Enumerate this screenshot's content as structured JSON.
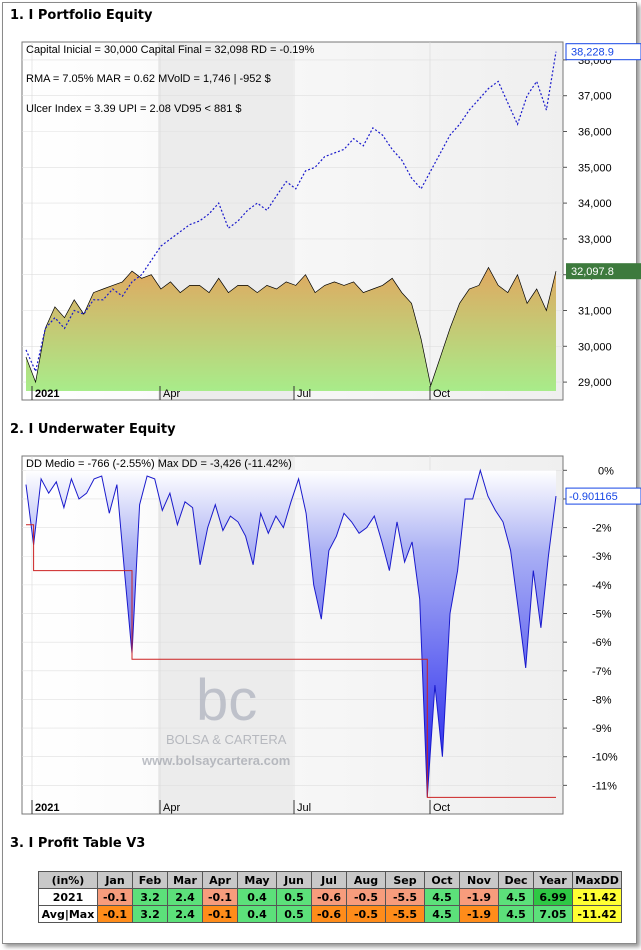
{
  "sections": {
    "equity_title": "1. I Portfolio Equity",
    "underwater_title": "2. I Underwater Equity",
    "table_title": "3. I Profit Table V3"
  },
  "equity_stats": {
    "line1": "Capital Inicial = 30,000  Capital Final = 32,098   RD = -0.19%",
    "line2": "RMA = 7.05%   MAR = 0.62   MVolD = 1,746 | -952 $",
    "line3": "Ulcer Index = 3.39   UPI = 2.08   VD95 < 881 $"
  },
  "underwater_stats": {
    "line1": "DD Medio = -766 (-2.55%)      Max DD = -3,426 (-11.42%)"
  },
  "watermark": {
    "logo": "bc",
    "name": "BOLSA & CARTERA",
    "url": "www.bolsaycartera.com"
  },
  "colors": {
    "equity_line": "#1a1acc",
    "benchmark_fill_top": "#e0a860",
    "benchmark_fill_bottom": "#a8ec8a",
    "underwater_line": "#1a1acc",
    "maxdd_line": "#cc2222",
    "shade": "#ececec",
    "label_blue": "#1646e6",
    "label_green": "#3d7a3d",
    "cell_red": "#f79c7c",
    "cell_orange": "#ff8c1a",
    "cell_green": "#5ce07a",
    "cell_yellow": "#ffff33",
    "cell_darkgreen": "#2ec844"
  },
  "chart_data": [
    {
      "type": "line",
      "name": "portfolio-equity",
      "x_ticks": [
        "2021",
        "Apr",
        "Jul",
        "Oct"
      ],
      "y_ticks": [
        "29,000",
        "30,000",
        "31,000",
        "32,000",
        "33,000",
        "34,000",
        "35,000",
        "36,000",
        "37,000",
        "38,000"
      ],
      "ylim": [
        28500,
        38500
      ],
      "last_value_labels": [
        "38,228.9",
        "32,097.8"
      ],
      "series": [
        {
          "values": [
            29900,
            29300,
            30500,
            30800,
            30500,
            31000,
            30900,
            31300,
            31300,
            31600,
            31400,
            31800,
            32000,
            32400,
            32800,
            33000,
            33200,
            33400,
            33500,
            33700,
            34000,
            33300,
            33500,
            33800,
            34000,
            33800,
            34200,
            34600,
            34400,
            34900,
            35000,
            35300,
            35400,
            35500,
            35800,
            35600,
            36100,
            35900,
            35500,
            35200,
            34700,
            34400,
            34900,
            35400,
            35900,
            36200,
            36600,
            36900,
            37200,
            37400,
            36800,
            36200,
            37000,
            37400,
            36600,
            38229
          ]
        },
        {
          "values": [
            29700,
            29000,
            30500,
            31100,
            30800,
            31300,
            30900,
            31500,
            31600,
            31700,
            31800,
            32100,
            31900,
            32000,
            31600,
            31800,
            31500,
            31700,
            31700,
            31500,
            31900,
            31500,
            31700,
            31700,
            31500,
            31700,
            31600,
            31800,
            31700,
            32000,
            31500,
            31700,
            31800,
            31700,
            31800,
            31500,
            31600,
            31700,
            31900,
            31500,
            31200,
            30200,
            28900,
            29700,
            30500,
            31200,
            31600,
            31700,
            32200,
            31700,
            31500,
            32000,
            31200,
            31600,
            31000,
            32098
          ]
        }
      ]
    },
    {
      "type": "area",
      "name": "underwater-equity",
      "x_ticks": [
        "2021",
        "Apr",
        "Jul",
        "Oct"
      ],
      "y_ticks": [
        "0%",
        "-1%",
        "-2%",
        "-3%",
        "-4%",
        "-5%",
        "-6%",
        "-7%",
        "-8%",
        "-9%",
        "-10%",
        "-11%"
      ],
      "ylim": [
        -12,
        0.5
      ],
      "last_value_label": "-0.901165",
      "values": [
        -0.5,
        -2.6,
        -0.3,
        -0.8,
        -0.4,
        -1.3,
        -0.3,
        -1.0,
        -0.8,
        -0.3,
        -0.2,
        -1.5,
        -0.5,
        -3.5,
        -6.4,
        -1.2,
        -0.2,
        -0.3,
        -1.4,
        -0.8,
        -1.9,
        -1.1,
        -1.3,
        -3.3,
        -2.0,
        -1.2,
        -2.1,
        -1.6,
        -1.8,
        -2.3,
        -3.3,
        -1.5,
        -2.2,
        -1.6,
        -2.0,
        -1.1,
        -0.3,
        -1.5,
        -4.0,
        -5.2,
        -2.8,
        -2.3,
        -1.5,
        -1.8,
        -2.2,
        -2.0,
        -1.6,
        -2.5,
        -3.5,
        -1.8,
        -3.2,
        -2.5,
        -4.5,
        -11.4,
        -7.5,
        -10.0,
        -5.0,
        -3.5,
        -1.0,
        -1.0,
        0.0,
        -0.9,
        -1.4,
        -1.8,
        -2.8,
        -4.8,
        -6.9,
        -3.5,
        -5.5,
        -3.0,
        -0.9
      ],
      "maxdd_steps": [
        {
          "from_index": 0,
          "to_index": 1,
          "value": -1.9
        },
        {
          "from_index": 1,
          "to_index": 14,
          "value": -3.5
        },
        {
          "from_index": 14,
          "to_index": 53,
          "value": -6.6
        },
        {
          "from_index": 53,
          "to_index": 70,
          "value": -11.42
        }
      ]
    }
  ],
  "profit_table": {
    "headers": [
      "(in%)",
      "Jan",
      "Feb",
      "Mar",
      "Apr",
      "May",
      "Jun",
      "Jul",
      "Aug",
      "Sep",
      "Oct",
      "Nov",
      "Dec",
      "Year",
      "MaxDD"
    ],
    "rows": [
      {
        "label": "2021",
        "cells": [
          "-0.1",
          "3.2",
          "2.4",
          "-0.1",
          "0.4",
          "0.5",
          "-0.6",
          "-0.5",
          "-5.5",
          "4.5",
          "-1.9",
          "4.5",
          "6.99",
          "-11.42"
        ],
        "fills": [
          "red",
          "green",
          "green",
          "red",
          "green",
          "green",
          "red",
          "red",
          "red",
          "green",
          "red",
          "green",
          "darkgreen",
          "yellow"
        ]
      },
      {
        "label": "Avg|Max",
        "cells": [
          "-0.1",
          "3.2",
          "2.4",
          "-0.1",
          "0.4",
          "0.5",
          "-0.6",
          "-0.5",
          "-5.5",
          "4.5",
          "-1.9",
          "4.5",
          "7.05",
          "-11.42"
        ],
        "fills": [
          "orange",
          "green",
          "green",
          "orange",
          "green",
          "green",
          "orange",
          "orange",
          "orange",
          "green",
          "orange",
          "green",
          "green",
          "yellow"
        ]
      }
    ]
  }
}
